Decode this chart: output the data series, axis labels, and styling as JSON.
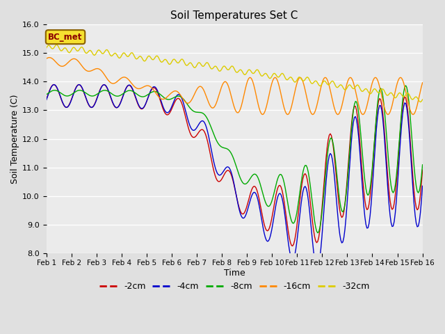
{
  "title": "Soil Temperatures Set C",
  "xlabel": "Time",
  "ylabel": "Soil Temperature (C)",
  "ylim": [
    8.0,
    16.0
  ],
  "yticks": [
    8.0,
    9.0,
    10.0,
    11.0,
    12.0,
    13.0,
    14.0,
    15.0,
    16.0
  ],
  "x_labels": [
    "Feb 1",
    "Feb 2",
    "Feb 3",
    "Feb 4",
    "Feb 5",
    "Feb 6",
    "Feb 7",
    "Feb 8",
    "Feb 9",
    "Feb 10",
    "Feb 11",
    "Feb 12",
    "Feb 13",
    "Feb 14",
    "Feb 15",
    "Feb 16"
  ],
  "annotation": "BC_met",
  "bg_color": "#e0e0e0",
  "plot_bg_color": "#ebebeb",
  "legend_entries": [
    "-2cm",
    "-4cm",
    "-8cm",
    "-16cm",
    "-32cm"
  ],
  "line_colors": [
    "#cc0000",
    "#0000cc",
    "#00aa00",
    "#ff8800",
    "#ddcc00"
  ],
  "n_days": 15,
  "pts_per_day": 24
}
